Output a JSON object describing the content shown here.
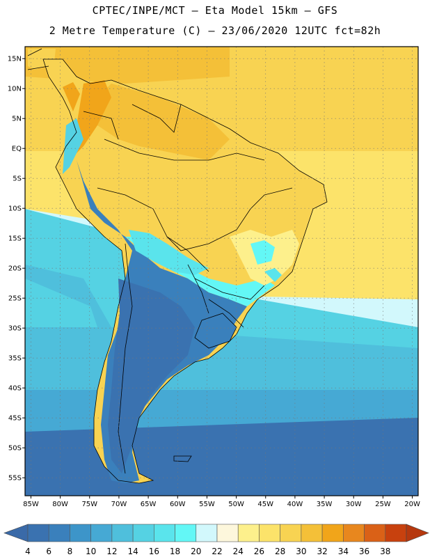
{
  "header": {
    "line1": "CPTEC/INPE/MCT –  Eta Model 15km – GFS",
    "line2": "2 Metre Temperature (C) – 23/06/2020 12UTC fct=82h"
  },
  "map": {
    "lon_range": [
      -86,
      -19
    ],
    "lat_range": [
      -58,
      17
    ],
    "lat_ticks": [
      "15N",
      "10N",
      "5N",
      "EQ",
      "5S",
      "10S",
      "15S",
      "20S",
      "25S",
      "30S",
      "35S",
      "40S",
      "45S",
      "50S",
      "55S"
    ],
    "lon_ticks": [
      "85W",
      "80W",
      "75W",
      "70W",
      "65W",
      "60W",
      "55W",
      "50W",
      "45W",
      "40W",
      "35W",
      "30W",
      "25W",
      "20W"
    ],
    "gridlines": "dotted"
  },
  "colorbar": {
    "labels": [
      "4",
      "6",
      "8",
      "10",
      "12",
      "14",
      "16",
      "18",
      "20",
      "22",
      "24",
      "26",
      "28",
      "30",
      "32",
      "34",
      "36",
      "38"
    ],
    "colors": [
      "#3a72b0",
      "#3a80bc",
      "#3d95c9",
      "#46a9d4",
      "#4fbfdc",
      "#55d2e3",
      "#5ae4ec",
      "#63f7f6",
      "#d2f8fc",
      "#fdf7dc",
      "#fdf08c",
      "#fce36a",
      "#f8d352",
      "#f4c038",
      "#f1a51a",
      "#e8871e",
      "#da6117",
      "#c8410e"
    ],
    "left_arrow_color": "#3a6aa8",
    "right_arrow_color": "#b6380e"
  }
}
